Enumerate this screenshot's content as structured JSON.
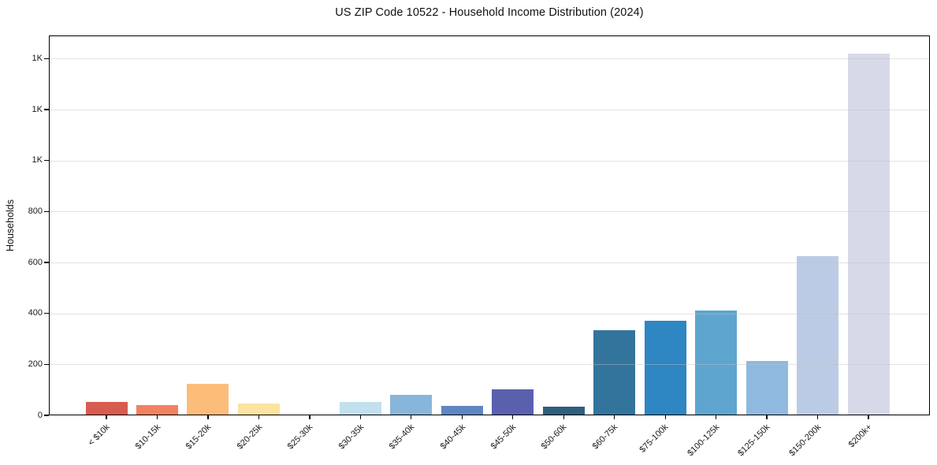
{
  "chart_data": {
    "type": "bar",
    "title": "US ZIP Code 10522 - Household Income Distribution (2024)",
    "xlabel": "",
    "ylabel": "Households",
    "categories": [
      "< $10k",
      "$10-15k",
      "$15-20k",
      "$20-25k",
      "$25-30k",
      "$30-35k",
      "$35-40k",
      "$40-45k",
      "$45-50k",
      "$50-60k",
      "$60-75k",
      "$75-100k",
      "$100-125k",
      "$125-150k",
      "$150-200k",
      "$200k+"
    ],
    "values": [
      52,
      40,
      125,
      45,
      0,
      52,
      80,
      38,
      103,
      35,
      335,
      370,
      410,
      215,
      625,
      1420
    ],
    "bar_colors": [
      "#d65c4f",
      "#f28160",
      "#fcbd7a",
      "#fbe3a0",
      null,
      "#c2e0ee",
      "#87b6da",
      "#5e86c2",
      "#5a60ae",
      "#2e5f7e",
      "#33749c",
      "#2e86c2",
      "#5ea6cf",
      "#8fb9de",
      "#bccbe5",
      "#d8d9e8"
    ],
    "ylim": [
      0,
      1491
    ],
    "yticks": [
      0,
      200,
      400,
      600,
      800,
      1000,
      1200,
      1400
    ],
    "ytick_labels": [
      "0",
      "200",
      "400",
      "600",
      "800",
      "1K",
      "1K",
      "1K"
    ],
    "grid": "horizontal",
    "grid_color": "#e3e3e3",
    "axis_color": "#000000",
    "background_color": "#ffffff",
    "legend": "none",
    "x_tick_rotation": 45
  }
}
